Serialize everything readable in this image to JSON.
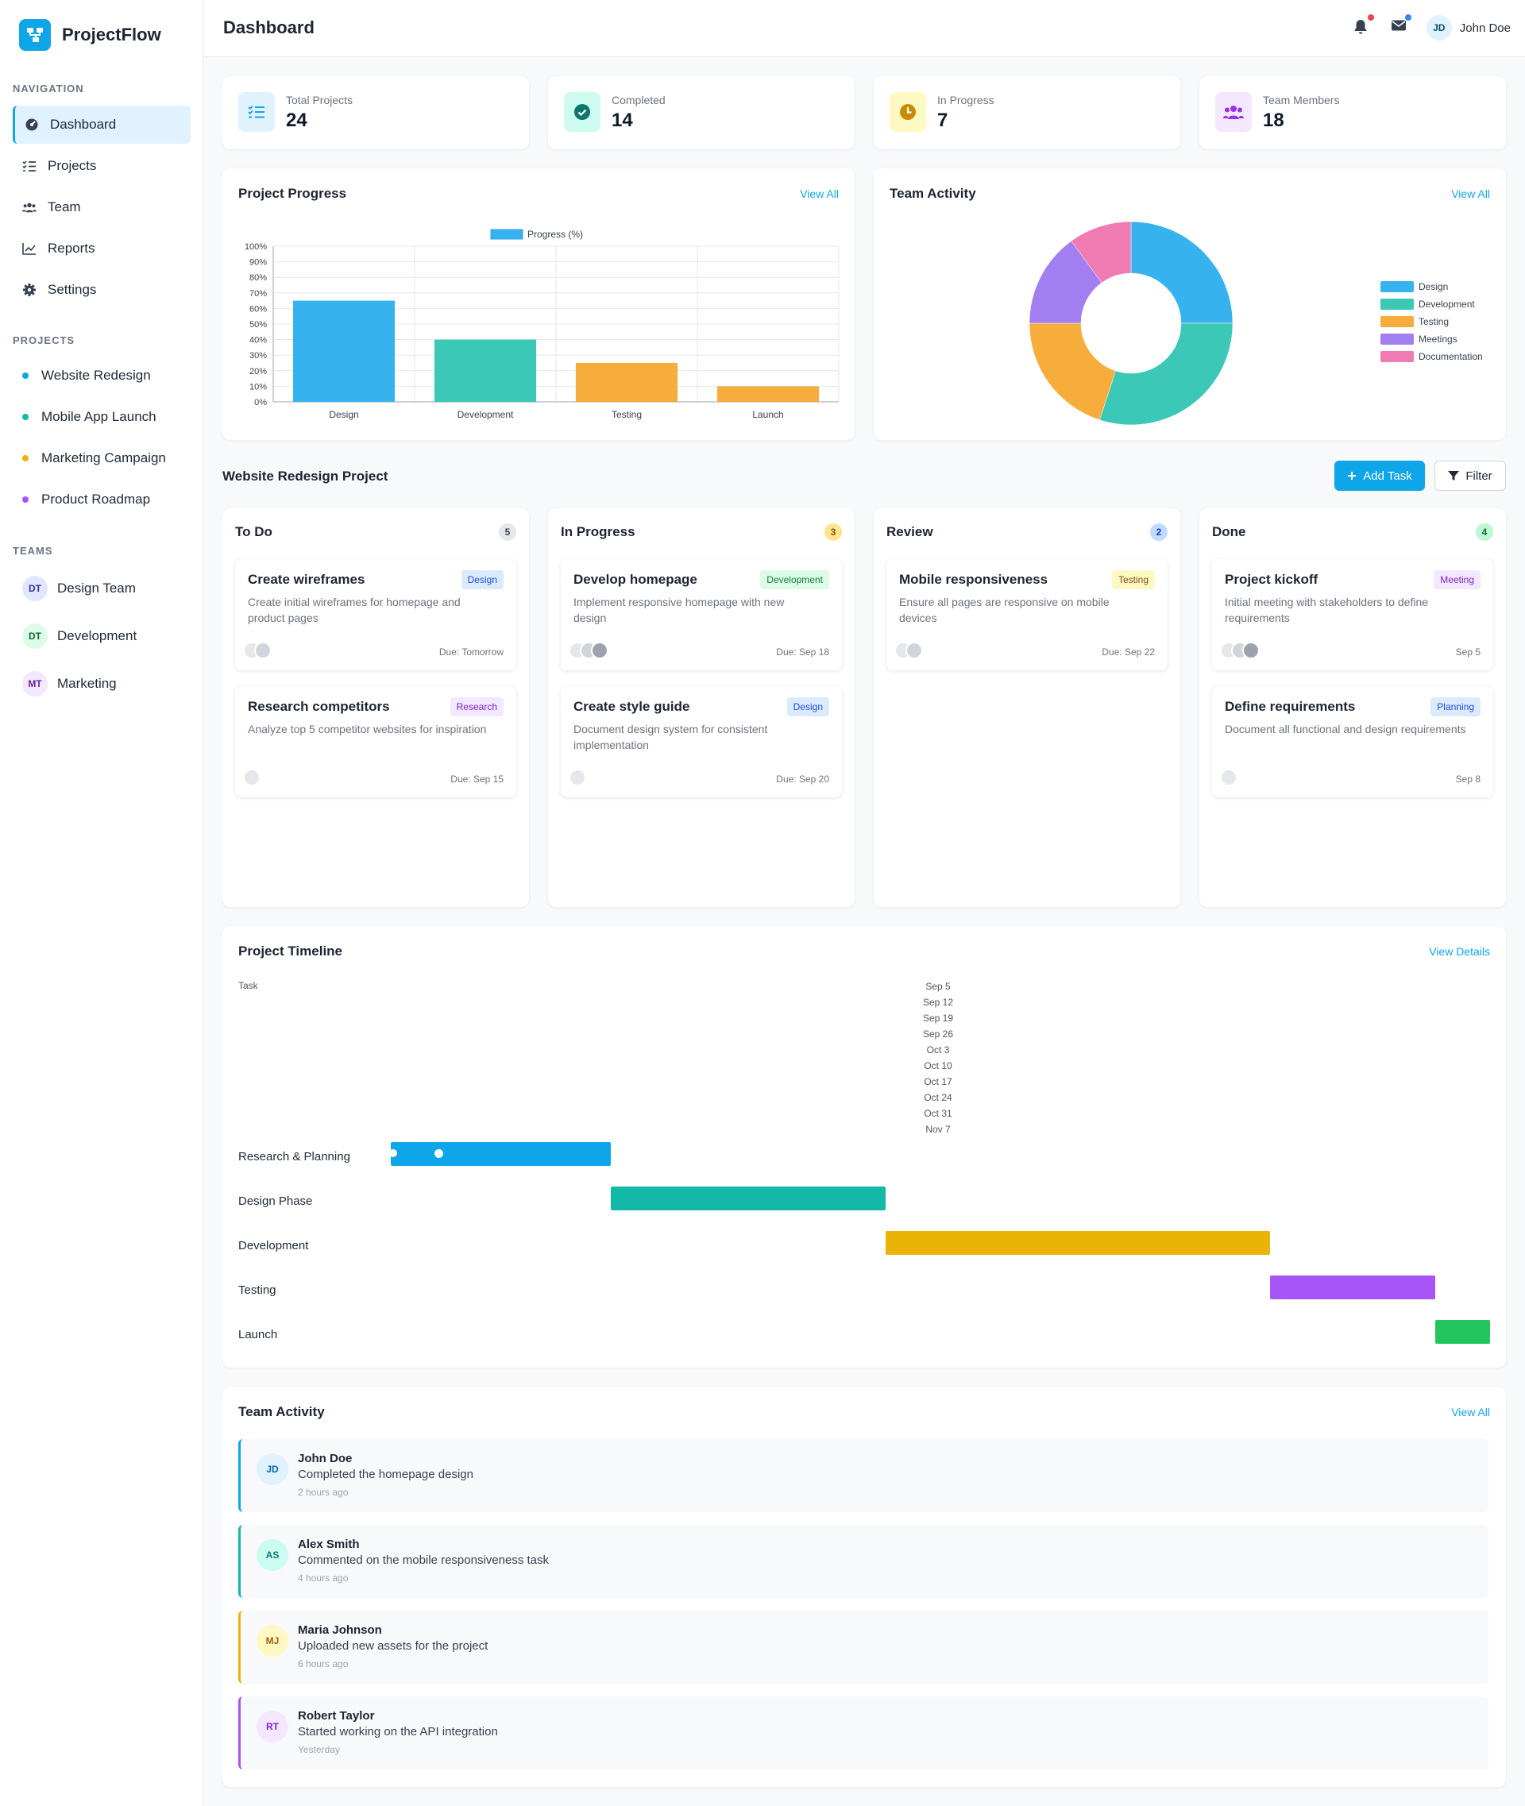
{
  "app": {
    "name": "ProjectFlow"
  },
  "header": {
    "title": "Dashboard",
    "user_initials": "JD",
    "user_name": "John Doe"
  },
  "sidebar": {
    "nav_title": "NAVIGATION",
    "nav": [
      {
        "label": "Dashboard",
        "icon": "dashboard-icon"
      },
      {
        "label": "Projects",
        "icon": "tasks-icon"
      },
      {
        "label": "Team",
        "icon": "users-icon"
      },
      {
        "label": "Reports",
        "icon": "chart-line-icon"
      },
      {
        "label": "Settings",
        "icon": "gear-icon"
      }
    ],
    "projects_title": "PROJECTS",
    "projects": [
      {
        "label": "Website Redesign",
        "color": "#0ea5e9"
      },
      {
        "label": "Mobile App Launch",
        "color": "#14b8a6"
      },
      {
        "label": "Marketing Campaign",
        "color": "#eab308"
      },
      {
        "label": "Product Roadmap",
        "color": "#a855f7"
      }
    ],
    "teams_title": "TEAMS",
    "teams": [
      {
        "initials": "DT",
        "label": "Design Team"
      },
      {
        "initials": "DT",
        "label": "Development"
      },
      {
        "initials": "MT",
        "label": "Marketing"
      }
    ]
  },
  "stats": [
    {
      "label": "Total Projects",
      "value": "24"
    },
    {
      "label": "Completed",
      "value": "14"
    },
    {
      "label": "In Progress",
      "value": "7"
    },
    {
      "label": "Team Members",
      "value": "18"
    }
  ],
  "progress_card": {
    "title": "Project Progress",
    "link": "View All"
  },
  "activity_chart_card": {
    "title": "Team Activity",
    "link": "View All"
  },
  "chart_data": [
    {
      "type": "bar",
      "title": "",
      "categories": [
        "Design",
        "Development",
        "Testing",
        "Launch"
      ],
      "series": [
        {
          "name": "Progress (%)",
          "values": [
            65,
            40,
            25,
            10
          ]
        }
      ],
      "ylim": [
        0,
        100
      ],
      "yticks": [
        "100%",
        "90%",
        "80%",
        "70%",
        "60%",
        "50%",
        "40%",
        "30%",
        "20%",
        "10%",
        "0%"
      ],
      "colors": [
        "#36b3ee",
        "#3cc8b6",
        "#f6ad3b",
        "#f6ad3b"
      ],
      "grid": true,
      "legend": "top"
    },
    {
      "type": "pie",
      "title": "",
      "labels": [
        "Design",
        "Development",
        "Testing",
        "Meetings",
        "Documentation"
      ],
      "values": [
        25,
        30,
        20,
        15,
        10
      ],
      "colors": [
        "#36b3ee",
        "#3cc8b6",
        "#f6ad3b",
        "#a27ff0",
        "#f07ab2"
      ],
      "legend": "right"
    }
  ],
  "board": {
    "title": "Website Redesign Project",
    "add_label": "Add Task",
    "filter_label": "Filter",
    "columns": [
      {
        "title": "To Do",
        "count": "5",
        "tasks": [
          {
            "title": "Create wireframes",
            "tag": "Design",
            "desc": "Create initial wireframes for homepage and product pages",
            "due": "Due: Tomorrow"
          },
          {
            "title": "Research competitors",
            "tag": "Research",
            "desc": "Analyze top 5 competitor websites for inspiration",
            "due": "Due: Sep 15"
          }
        ]
      },
      {
        "title": "In Progress",
        "count": "3",
        "tasks": [
          {
            "title": "Develop homepage",
            "tag": "Development",
            "desc": "Implement responsive homepage with new design",
            "due": "Due: Sep 18"
          },
          {
            "title": "Create style guide",
            "tag": "Design",
            "desc": "Document design system for consistent implementation",
            "due": "Due: Sep 20"
          }
        ]
      },
      {
        "title": "Review",
        "count": "2",
        "tasks": [
          {
            "title": "Mobile responsiveness",
            "tag": "Testing",
            "desc": "Ensure all pages are responsive on mobile devices",
            "due": "Due: Sep 22"
          }
        ]
      },
      {
        "title": "Done",
        "count": "4",
        "tasks": [
          {
            "title": "Project kickoff",
            "tag": "Meeting",
            "desc": "Initial meeting with stakeholders to define requirements",
            "due": "Sep 5"
          },
          {
            "title": "Define requirements",
            "tag": "Planning",
            "desc": "Document all functional and design requirements",
            "due": "Sep 8"
          }
        ]
      }
    ]
  },
  "timeline": {
    "title": "Project Timeline",
    "link": "View Details",
    "task_header": "Task",
    "dates": [
      "Sep 5",
      "Sep 12",
      "Sep 19",
      "Sep 26",
      "Oct 3",
      "Oct 10",
      "Oct 17",
      "Oct 24",
      "Oct 31",
      "Nov 7"
    ],
    "tasks": [
      {
        "label": "Research & Planning",
        "color": "#0ea5e9"
      },
      {
        "label": "Design Phase",
        "color": "#14b8a6"
      },
      {
        "label": "Development",
        "color": "#eab308"
      },
      {
        "label": "Testing",
        "color": "#a855f7"
      },
      {
        "label": "Launch",
        "color": "#22c55e"
      }
    ]
  },
  "activity": {
    "title": "Team Activity",
    "link": "View All",
    "items": [
      {
        "initials": "JD",
        "name": "John Doe",
        "text": "Completed the homepage design",
        "time": "2 hours ago",
        "color": "#0ea5e9"
      },
      {
        "initials": "AS",
        "name": "Alex Smith",
        "text": "Commented on the mobile responsiveness task",
        "time": "4 hours ago",
        "color": "#14b8a6"
      },
      {
        "initials": "MJ",
        "name": "Maria Johnson",
        "text": "Uploaded new assets for the project",
        "time": "6 hours ago",
        "color": "#eab308"
      },
      {
        "initials": "RT",
        "name": "Robert Taylor",
        "text": "Started working on the API integration",
        "time": "Yesterday",
        "color": "#a855f7"
      }
    ]
  }
}
